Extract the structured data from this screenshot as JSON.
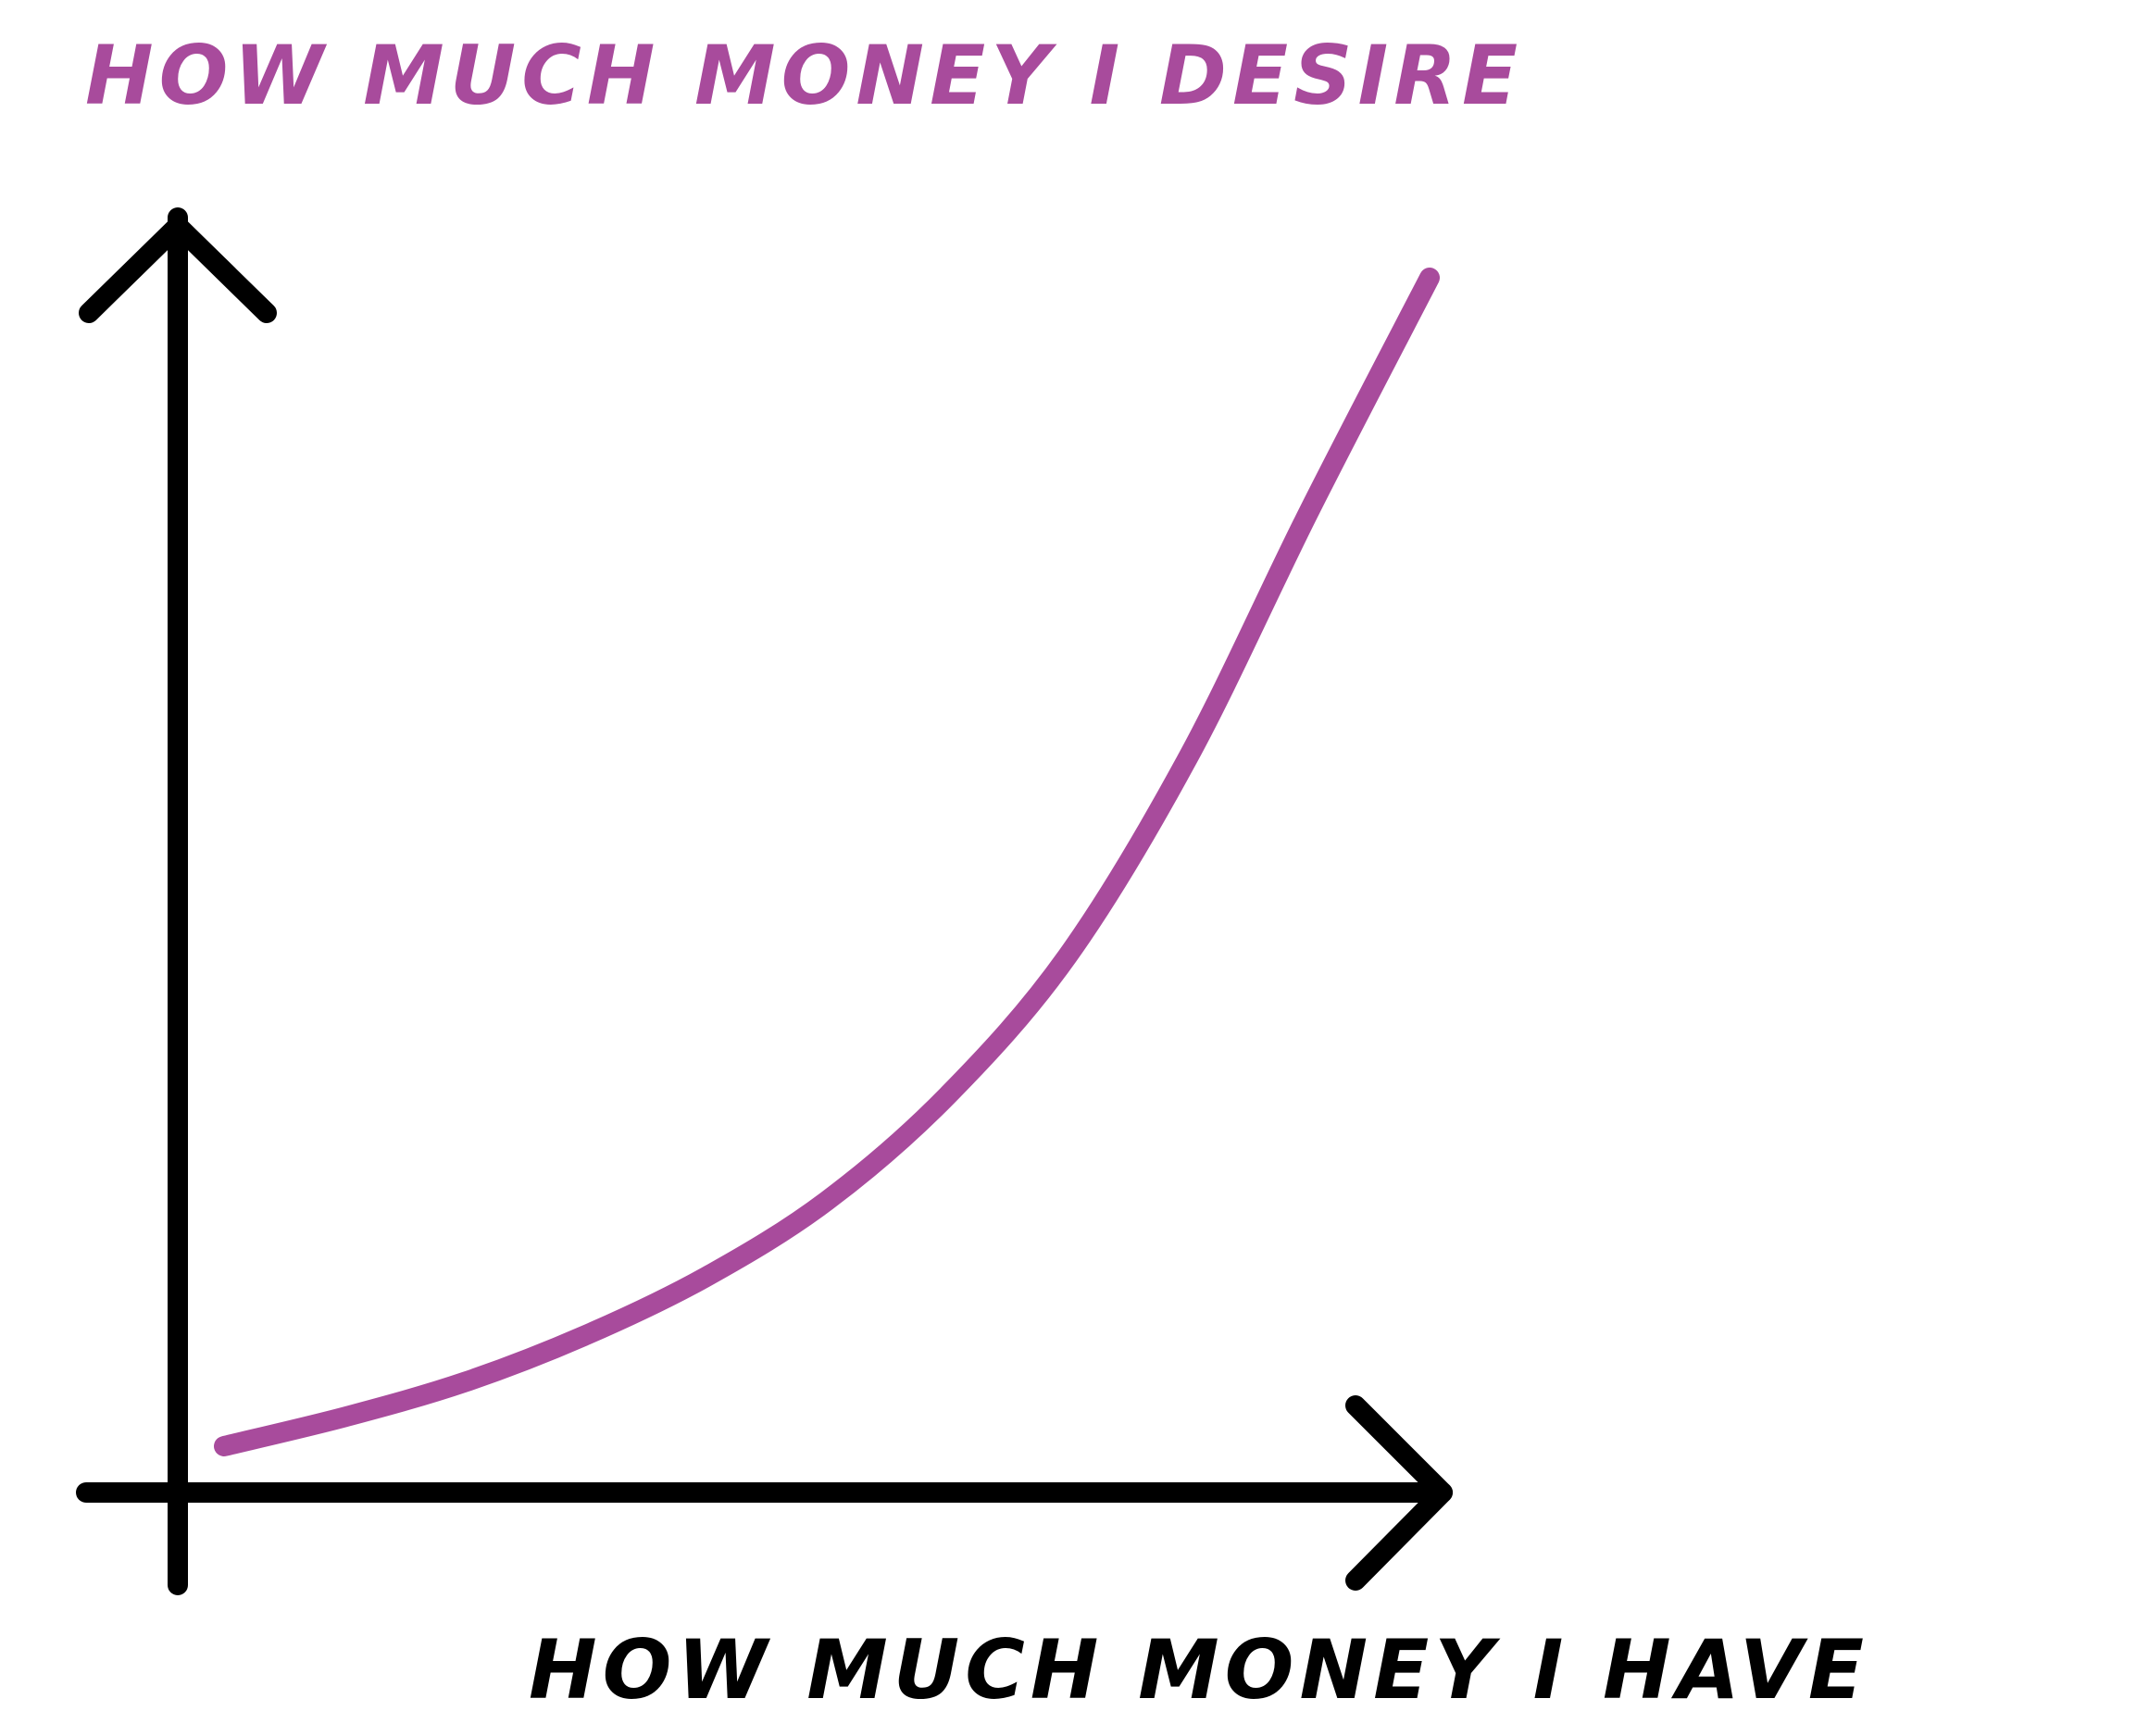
{
  "chart_data": {
    "type": "line",
    "ylabel": "HOW MUCH MONEY I DESIRE",
    "xlabel": "HOW MUCH MONEY I HAVE",
    "axes_numeric_labels": false,
    "grid": false,
    "series": [
      {
        "color": "#a84b9c",
        "x": [
          0.0,
          0.1,
          0.2,
          0.3,
          0.4,
          0.5,
          0.6,
          0.7,
          0.8,
          0.9,
          1.0
        ],
        "y": [
          0.0,
          0.025,
          0.055,
          0.095,
          0.145,
          0.21,
          0.3,
          0.42,
          0.59,
          0.8,
          1.0
        ]
      }
    ]
  },
  "colors": {
    "axis": "#000000",
    "curve": "#a84b9c",
    "ylabel_text": "#a84b9c",
    "xlabel_text": "#000000",
    "background": "#ffffff"
  }
}
